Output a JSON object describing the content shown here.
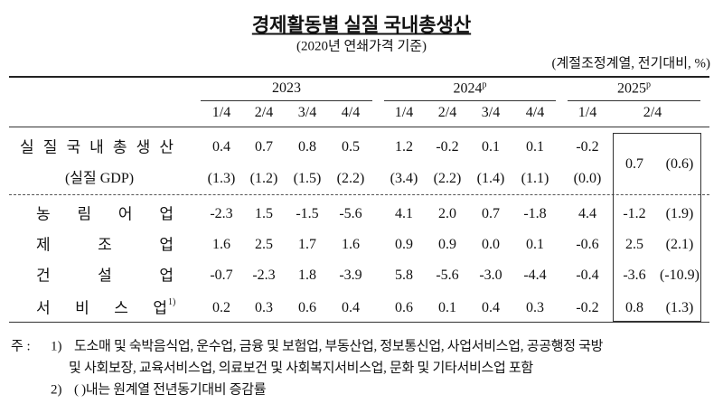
{
  "title": "경제활동별 실질 국내총생산",
  "subtitle": "(2020년 연쇄가격 기준)",
  "unit": "(계절조정계열, 전기대비, %)",
  "years": [
    {
      "label": "2023"
    },
    {
      "label": "2024",
      "sup": "p"
    },
    {
      "label": "2025",
      "sup": "p"
    }
  ],
  "quarters": [
    "1/4",
    "2/4",
    "3/4",
    "4/4",
    "1/4",
    "2/4",
    "3/4",
    "4/4",
    "1/4",
    "2/4"
  ],
  "gdp": {
    "label": "실 질 국 내 총 생 산",
    "sub_label": "(실질 GDP)",
    "values": [
      "0.4",
      "0.7",
      "0.8",
      "0.5",
      "1.2",
      "-0.2",
      "0.1",
      "0.1",
      "-0.2",
      "0.7"
    ],
    "yoy": [
      "(1.3)",
      "(1.2)",
      "(1.5)",
      "(2.2)",
      "(3.4)",
      "(2.2)",
      "(1.4)",
      "(1.1)",
      "(0.0)",
      "(0.6)"
    ]
  },
  "sectors": [
    {
      "label": "농 림 어 업",
      "values": [
        "-2.3",
        "1.5",
        "-1.5",
        "-5.6",
        "4.1",
        "2.0",
        "0.7",
        "-1.8",
        "4.4",
        "-1.2"
      ],
      "yoy": "(1.9)"
    },
    {
      "label": "제 조 업",
      "values": [
        "1.6",
        "2.5",
        "1.7",
        "1.6",
        "0.9",
        "0.9",
        "0.0",
        "0.1",
        "-0.6",
        "2.5"
      ],
      "yoy": "(2.1)"
    },
    {
      "label": "건 설 업",
      "values": [
        "-0.7",
        "-2.3",
        "1.8",
        "-3.9",
        "5.8",
        "-5.6",
        "-3.0",
        "-4.4",
        "-0.4",
        "-3.6"
      ],
      "yoy": "(-10.9)"
    },
    {
      "label": "서 비 스 업",
      "note": "1)",
      "values": [
        "0.2",
        "0.3",
        "0.6",
        "0.4",
        "0.6",
        "0.1",
        "0.4",
        "0.3",
        "-0.2",
        "0.8"
      ],
      "yoy": "(1.3)"
    }
  ],
  "notes": {
    "prefix": "주 :",
    "items": [
      {
        "mark": "1)",
        "lines": [
          "도소매 및 숙박음식업, 운수업, 금융 및 보험업, 부동산업, 정보통신업, 사업서비스업, 공공행정 국방",
          "및 사회보장, 교육서비스업, 의료보건 및 사회복지서비스업, 문화 및 기타서비스업 포함"
        ]
      },
      {
        "mark": "2)",
        "lines": [
          "(  )내는 원계열 전년동기대비 증감률"
        ]
      }
    ]
  }
}
